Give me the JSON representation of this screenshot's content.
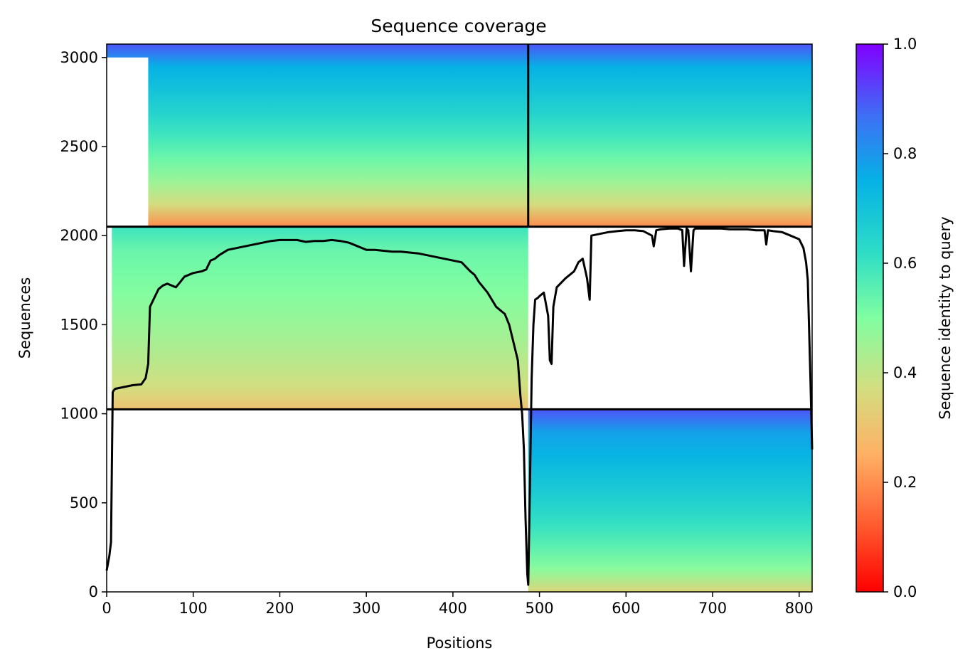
{
  "chart_data": {
    "type": "heatmap",
    "title": "Sequence coverage",
    "xlabel": "Positions",
    "ylabel": "Sequences",
    "xlim": [
      0,
      815
    ],
    "ylim": [
      0,
      3075
    ],
    "xticks": [
      0,
      100,
      200,
      300,
      400,
      500,
      600,
      700,
      800
    ],
    "yticks": [
      0,
      500,
      1000,
      1500,
      2000,
      2500,
      3000
    ],
    "colorbar": {
      "label": "Sequence identity to query",
      "range": [
        0.0,
        1.0
      ],
      "ticks": [
        "0.0",
        "0.2",
        "0.4",
        "0.6",
        "0.8",
        "1.0"
      ],
      "colormap": "rainbow_r"
    },
    "divider_lines": {
      "x": 487,
      "y": [
        1025,
        2050
      ]
    },
    "blocks": [
      {
        "name": "upper-left",
        "x": [
          0,
          487
        ],
        "y": [
          2050,
          3075
        ],
        "identity_bottom": 0.2,
        "identity_top": 0.9
      },
      {
        "name": "upper-right",
        "x": [
          487,
          815
        ],
        "y": [
          2050,
          3075
        ],
        "identity_bottom": 0.2,
        "identity_top": 0.9
      },
      {
        "name": "middle-left",
        "x": [
          0,
          487
        ],
        "y": [
          1025,
          2050
        ],
        "identity_bottom": 0.3,
        "identity_top": 0.6
      },
      {
        "name": "lower-right",
        "x": [
          487,
          815
        ],
        "y": [
          0,
          1025
        ],
        "identity_bottom": 0.35,
        "identity_top": 0.9
      }
    ],
    "coverage_line": {
      "x": [
        0,
        3,
        5,
        6,
        7,
        8,
        10,
        20,
        30,
        40,
        45,
        48,
        50,
        52,
        55,
        60,
        65,
        70,
        75,
        80,
        85,
        90,
        100,
        110,
        115,
        120,
        125,
        130,
        140,
        150,
        160,
        170,
        180,
        190,
        200,
        210,
        220,
        230,
        240,
        250,
        260,
        270,
        280,
        290,
        300,
        310,
        320,
        330,
        340,
        350,
        360,
        370,
        380,
        390,
        400,
        410,
        420,
        425,
        430,
        440,
        450,
        460,
        465,
        470,
        475,
        478,
        480,
        482,
        484,
        486,
        487,
        489,
        491,
        493,
        495,
        498,
        500,
        505,
        510,
        512,
        514,
        516,
        520,
        530,
        540,
        545,
        550,
        555,
        558,
        560,
        570,
        580,
        590,
        600,
        610,
        620,
        630,
        632,
        635,
        640,
        650,
        660,
        665,
        667,
        670,
        672,
        675,
        678,
        680,
        690,
        700,
        710,
        720,
        730,
        740,
        750,
        760,
        762,
        764,
        770,
        780,
        790,
        800,
        802,
        805,
        808,
        810,
        813,
        815
      ],
      "y": [
        120,
        200,
        280,
        700,
        1120,
        1130,
        1140,
        1150,
        1160,
        1165,
        1200,
        1280,
        1600,
        1620,
        1650,
        1700,
        1720,
        1730,
        1720,
        1710,
        1740,
        1770,
        1790,
        1800,
        1810,
        1860,
        1870,
        1890,
        1920,
        1930,
        1940,
        1950,
        1960,
        1970,
        1975,
        1975,
        1975,
        1965,
        1970,
        1970,
        1975,
        1970,
        1960,
        1940,
        1920,
        1920,
        1915,
        1910,
        1910,
        1905,
        1900,
        1890,
        1880,
        1870,
        1860,
        1850,
        1800,
        1780,
        1740,
        1680,
        1600,
        1560,
        1500,
        1400,
        1300,
        1100,
        1000,
        800,
        400,
        100,
        40,
        600,
        1200,
        1500,
        1640,
        1650,
        1660,
        1680,
        1550,
        1300,
        1280,
        1600,
        1710,
        1760,
        1800,
        1850,
        1870,
        1760,
        1640,
        2000,
        2010,
        2020,
        2025,
        2030,
        2030,
        2025,
        2000,
        1940,
        2030,
        2035,
        2040,
        2040,
        2030,
        1830,
        2040,
        2030,
        1800,
        2030,
        2040,
        2040,
        2040,
        2040,
        2035,
        2035,
        2035,
        2030,
        2030,
        1950,
        2030,
        2025,
        2020,
        2000,
        1980,
        1960,
        1930,
        1850,
        1750,
        1200,
        800
      ]
    }
  }
}
